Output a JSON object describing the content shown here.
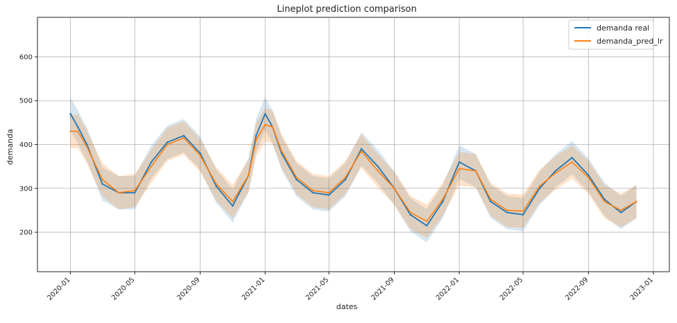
{
  "chart_data": {
    "type": "line",
    "title": "Lineplot prediction comparison",
    "xlabel": "dates",
    "ylabel": "demanda",
    "xlim": [
      "2019-10-31",
      "2023-01-31"
    ],
    "ylim": [
      110,
      690
    ],
    "x_ticks": [
      {
        "date": "2020-01-01",
        "label": "2020-01"
      },
      {
        "date": "2020-05-01",
        "label": "2020-05"
      },
      {
        "date": "2020-09-01",
        "label": "2020-09"
      },
      {
        "date": "2021-01-01",
        "label": "2021-01"
      },
      {
        "date": "2021-05-01",
        "label": "2021-05"
      },
      {
        "date": "2021-09-01",
        "label": "2021-09"
      },
      {
        "date": "2022-01-01",
        "label": "2022-01"
      },
      {
        "date": "2022-05-01",
        "label": "2022-05"
      },
      {
        "date": "2022-09-01",
        "label": "2022-09"
      },
      {
        "date": "2023-01-01",
        "label": "2023-01"
      }
    ],
    "y_ticks": [
      200,
      300,
      400,
      500,
      600
    ],
    "grid": true,
    "legend": "top-right",
    "series": [
      {
        "name": "demanda real",
        "color": "#1f77b4",
        "x": [
          "2020-01-01",
          "2020-01-15",
          "2020-02-01",
          "2020-03-01",
          "2020-04-01",
          "2020-05-01",
          "2020-06-01",
          "2020-07-01",
          "2020-08-01",
          "2020-09-01",
          "2020-10-01",
          "2020-11-01",
          "2020-12-01",
          "2020-12-15",
          "2021-01-01",
          "2021-01-15",
          "2021-02-01",
          "2021-03-01",
          "2021-04-01",
          "2021-05-01",
          "2021-06-01",
          "2021-07-01",
          "2021-08-01",
          "2021-09-01",
          "2021-10-01",
          "2021-11-01",
          "2021-12-01",
          "2022-01-01",
          "2022-02-01",
          "2022-03-01",
          "2022-04-01",
          "2022-05-01",
          "2022-06-01",
          "2022-07-01",
          "2022-08-01",
          "2022-09-01",
          "2022-10-01",
          "2022-11-01",
          "2022-11-30"
        ],
        "y": [
          470,
          440,
          400,
          310,
          290,
          290,
          360,
          405,
          420,
          380,
          305,
          260,
          330,
          420,
          470,
          440,
          380,
          320,
          290,
          285,
          320,
          390,
          350,
          300,
          240,
          215,
          270,
          360,
          340,
          270,
          245,
          240,
          300,
          340,
          370,
          330,
          275,
          245,
          270
        ]
      },
      {
        "name": "demanda_pred_lr",
        "color": "#ff7f0e",
        "x": [
          "2020-01-01",
          "2020-01-15",
          "2020-02-01",
          "2020-03-01",
          "2020-04-01",
          "2020-05-01",
          "2020-06-01",
          "2020-07-01",
          "2020-08-01",
          "2020-09-01",
          "2020-10-01",
          "2020-11-01",
          "2020-12-01",
          "2020-12-15",
          "2021-01-01",
          "2021-01-15",
          "2021-02-01",
          "2021-03-01",
          "2021-04-01",
          "2021-05-01",
          "2021-06-01",
          "2021-07-01",
          "2021-08-01",
          "2021-09-01",
          "2021-10-01",
          "2021-11-01",
          "2021-12-01",
          "2022-01-01",
          "2022-02-01",
          "2022-03-01",
          "2022-04-01",
          "2022-05-01",
          "2022-06-01",
          "2022-07-01",
          "2022-08-01",
          "2022-09-01",
          "2022-10-01",
          "2022-11-01",
          "2022-11-30"
        ],
        "y": [
          430,
          430,
          395,
          320,
          290,
          295,
          350,
          400,
          415,
          375,
          310,
          270,
          330,
          410,
          445,
          440,
          385,
          325,
          295,
          290,
          325,
          385,
          340,
          300,
          245,
          225,
          275,
          345,
          340,
          275,
          250,
          248,
          305,
          335,
          360,
          325,
          270,
          250,
          270
        ]
      }
    ]
  }
}
